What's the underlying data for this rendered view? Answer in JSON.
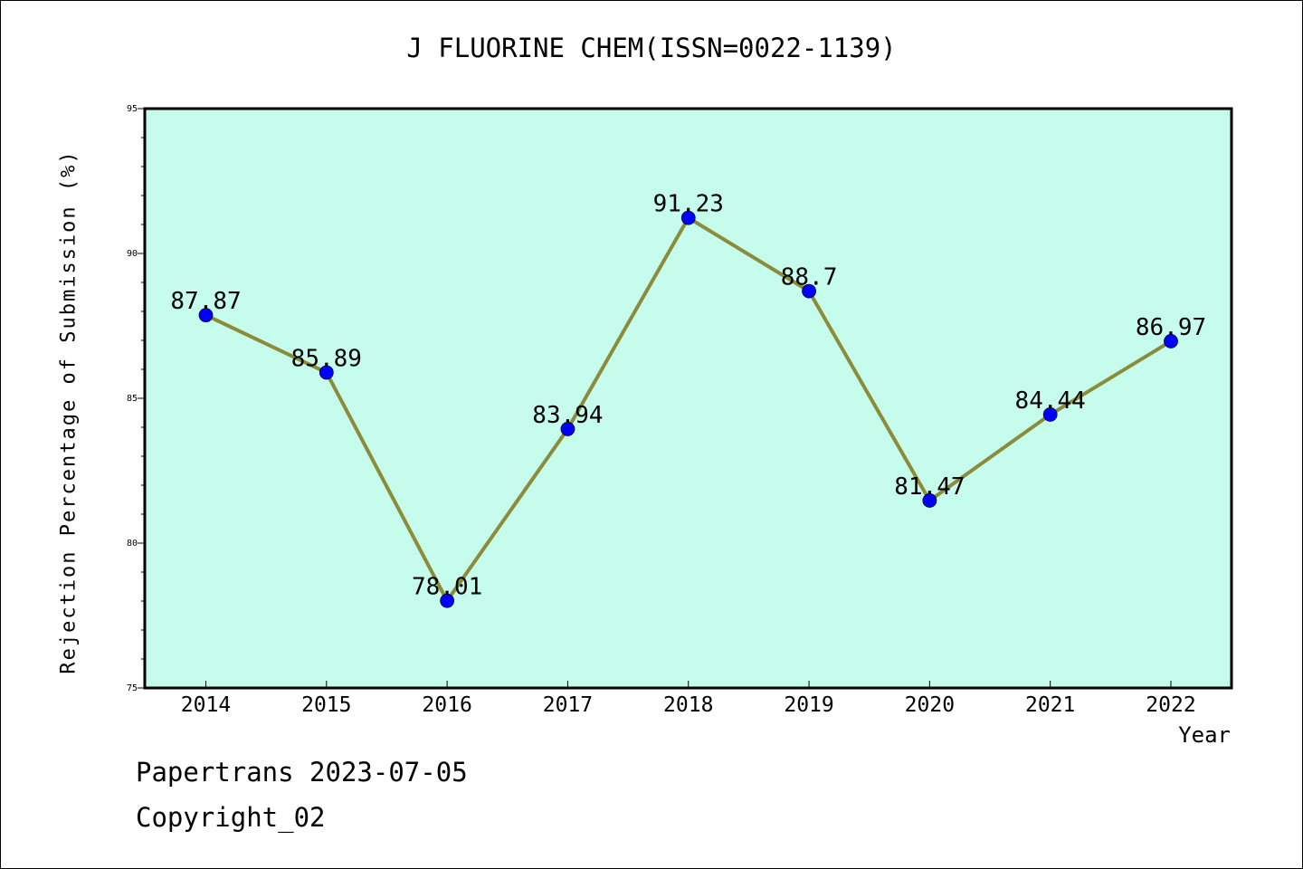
{
  "chart_data": {
    "type": "line",
    "title": "J FLUORINE CHEM(ISSN=0022-1139)",
    "xlabel": "Year",
    "ylabel": "Rejection Percentage of Submission (%)",
    "ylim": [
      75,
      95
    ],
    "yticks": [
      75,
      80,
      85,
      90,
      95
    ],
    "grid": false,
    "categories": [
      "2014",
      "2015",
      "2016",
      "2017",
      "2018",
      "2019",
      "2020",
      "2021",
      "2022"
    ],
    "series": [
      {
        "values": [
          87.87,
          85.89,
          78.01,
          83.94,
          91.23,
          88.7,
          81.47,
          84.44,
          86.97
        ],
        "labels": [
          "87.87",
          "85.89",
          "78.01",
          "83.94",
          "91.23",
          "88.7",
          "81.47",
          "84.44",
          "86.97"
        ]
      }
    ],
    "colors": {
      "plot_background": "#c6fcec",
      "line": "#8b8b3a",
      "marker": "#0000ff"
    }
  },
  "footer": {
    "line1": "Papertrans 2023-07-05",
    "line2": "Copyright_02"
  }
}
